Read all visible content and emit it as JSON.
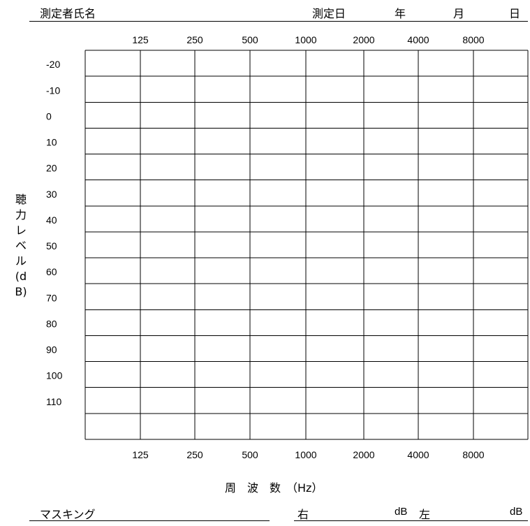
{
  "header": {
    "examiner_label": "測定者氏名",
    "date_label": "測定日",
    "year": "年",
    "month": "月",
    "day": "日"
  },
  "chart_data": {
    "type": "line",
    "x": [
      "125",
      "250",
      "500",
      "1000",
      "2000",
      "4000",
      "8000"
    ],
    "y_ticks": [
      -20,
      -10,
      0,
      10,
      20,
      30,
      40,
      50,
      60,
      70,
      80,
      90,
      100,
      110
    ],
    "ylim": [
      -30,
      120
    ],
    "series": [],
    "xlabel": "周　波　数　（Hz）",
    "ylabel": "聴力レベル(dB)",
    "grid": true
  },
  "footer": {
    "masking_label": "マスキング",
    "right_label": "右",
    "right_unit": "dB",
    "left_label": "左",
    "left_unit": "dB"
  }
}
